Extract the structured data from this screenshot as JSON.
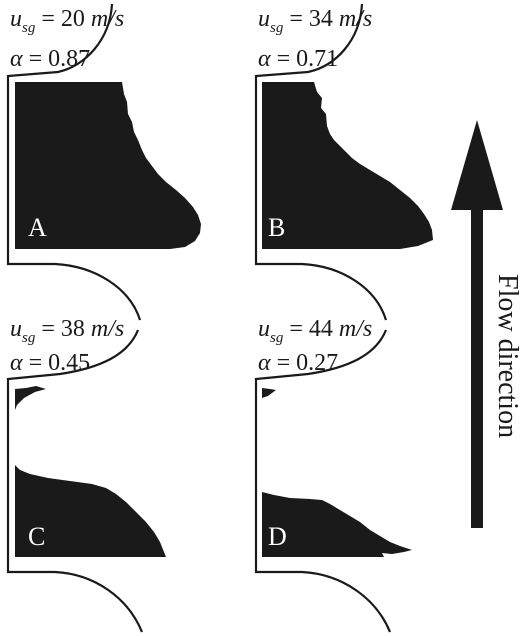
{
  "panels": [
    {
      "id": "A",
      "letter": "A",
      "usg_symbol": "u",
      "usg_sub": "sg",
      "usg_value": "= 20 ",
      "usg_unit": "m/s",
      "alpha_symbol": "α",
      "alpha_value": "= 0.87"
    },
    {
      "id": "B",
      "letter": "B",
      "usg_symbol": "u",
      "usg_sub": "sg",
      "usg_value": "= 34 ",
      "usg_unit": "m/s",
      "alpha_symbol": "α",
      "alpha_value": "= 0.71"
    },
    {
      "id": "C",
      "letter": "C",
      "usg_symbol": "u",
      "usg_sub": "sg",
      "usg_value": "= 38 ",
      "usg_unit": "m/s",
      "alpha_symbol": "α",
      "alpha_value": "= 0.45"
    },
    {
      "id": "D",
      "letter": "D",
      "usg_symbol": "u",
      "usg_sub": "sg",
      "usg_value": "= 44 ",
      "usg_unit": "m/s",
      "alpha_symbol": "α",
      "alpha_value": "= 0.27"
    }
  ],
  "flow_label": "Flow direction",
  "colors": {
    "ink": "#1a1a1a",
    "fill": "#1a1a1a",
    "background": "#ffffff"
  }
}
